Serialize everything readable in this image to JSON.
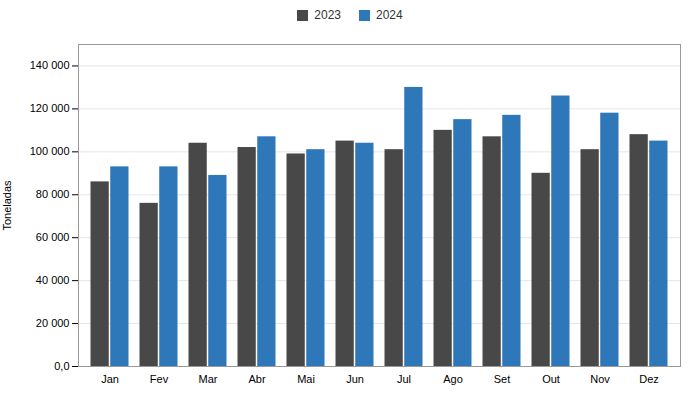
{
  "chart_data": {
    "type": "bar",
    "ylabel": "Toneladas",
    "categories": [
      "Jan",
      "Fev",
      "Mar",
      "Abr",
      "Mai",
      "Jun",
      "Jul",
      "Ago",
      "Set",
      "Out",
      "Nov",
      "Dez"
    ],
    "series": [
      {
        "name": "2023",
        "color": "#484848",
        "values": [
          86000,
          76000,
          104000,
          102000,
          99000,
          105000,
          101000,
          110000,
          107000,
          90000,
          101000,
          108000
        ]
      },
      {
        "name": "2024",
        "color": "#2e77b8",
        "values": [
          93000,
          93000,
          89000,
          107000,
          101000,
          104000,
          130000,
          115000,
          117000,
          126000,
          118000,
          105000
        ]
      }
    ],
    "ylim": [
      0,
      150000
    ],
    "yticks": [
      {
        "value": 0,
        "label": "0,0"
      },
      {
        "value": 20000,
        "label": "20 000"
      },
      {
        "value": 40000,
        "label": "40 000"
      },
      {
        "value": 60000,
        "label": "60 000"
      },
      {
        "value": 80000,
        "label": "80 000"
      },
      {
        "value": 100000,
        "label": "100 000"
      },
      {
        "value": 120000,
        "label": "120 000"
      },
      {
        "value": 140000,
        "label": "140 000"
      }
    ],
    "grid": true,
    "legend": "top"
  }
}
